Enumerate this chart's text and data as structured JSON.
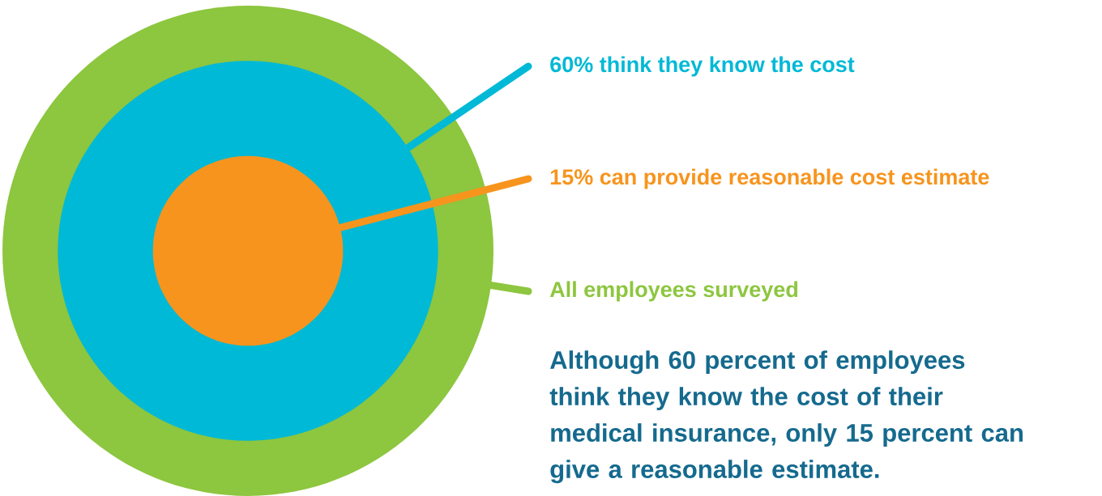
{
  "chart_data": {
    "type": "other",
    "categories": [
      "think they know the cost",
      "can provide reasonable cost estimate",
      "All employees surveyed"
    ],
    "values": [
      60,
      15,
      null
    ],
    "value_labels": [
      "60%",
      "15%",
      null
    ],
    "colors": [
      "#00b9d6",
      "#f7941d",
      "#8dc63f"
    ],
    "annotations": [
      "Although 60 percent of employees think they know the cost of their medical insurance, only 15 percent can give a reasonable estimate."
    ]
  }
}
